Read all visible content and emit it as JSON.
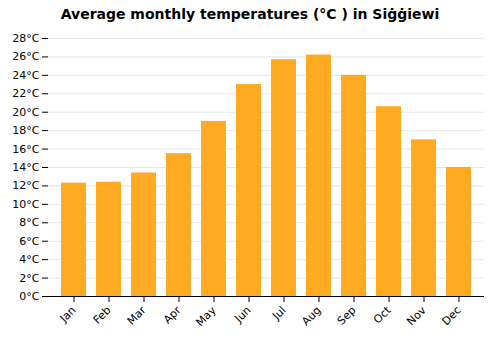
{
  "chart_data": {
    "type": "bar",
    "title": "Average monthly temperatures (°C ) in Siġġiewi",
    "categories": [
      "Jan",
      "Feb",
      "Mar",
      "Apr",
      "May",
      "Jun",
      "Jul",
      "Aug",
      "Sep",
      "Oct",
      "Nov",
      "Dec"
    ],
    "values": [
      12.3,
      12.4,
      13.4,
      15.5,
      19.0,
      23.0,
      25.7,
      26.2,
      24.0,
      20.6,
      17.0,
      14.0
    ],
    "color": "#FFAA20",
    "ylim": [
      0,
      28
    ],
    "yticks": [
      {
        "value": 0,
        "label": "0°C"
      },
      {
        "value": 2,
        "label": "2°C"
      },
      {
        "value": 4,
        "label": "4°C"
      },
      {
        "value": 6,
        "label": "6°C"
      },
      {
        "value": 8,
        "label": "8°C"
      },
      {
        "value": 10,
        "label": "10°C"
      },
      {
        "value": 12,
        "label": "12°C"
      },
      {
        "value": 14,
        "label": "14°C"
      },
      {
        "value": 16,
        "label": "16°C"
      },
      {
        "value": 18,
        "label": "18°C"
      },
      {
        "value": 20,
        "label": "20°C"
      },
      {
        "value": 22,
        "label": "22°C"
      },
      {
        "value": 24,
        "label": "24°C"
      },
      {
        "value": 26,
        "label": "26°C"
      },
      {
        "value": 28,
        "label": "28°C"
      }
    ],
    "grid": true
  }
}
